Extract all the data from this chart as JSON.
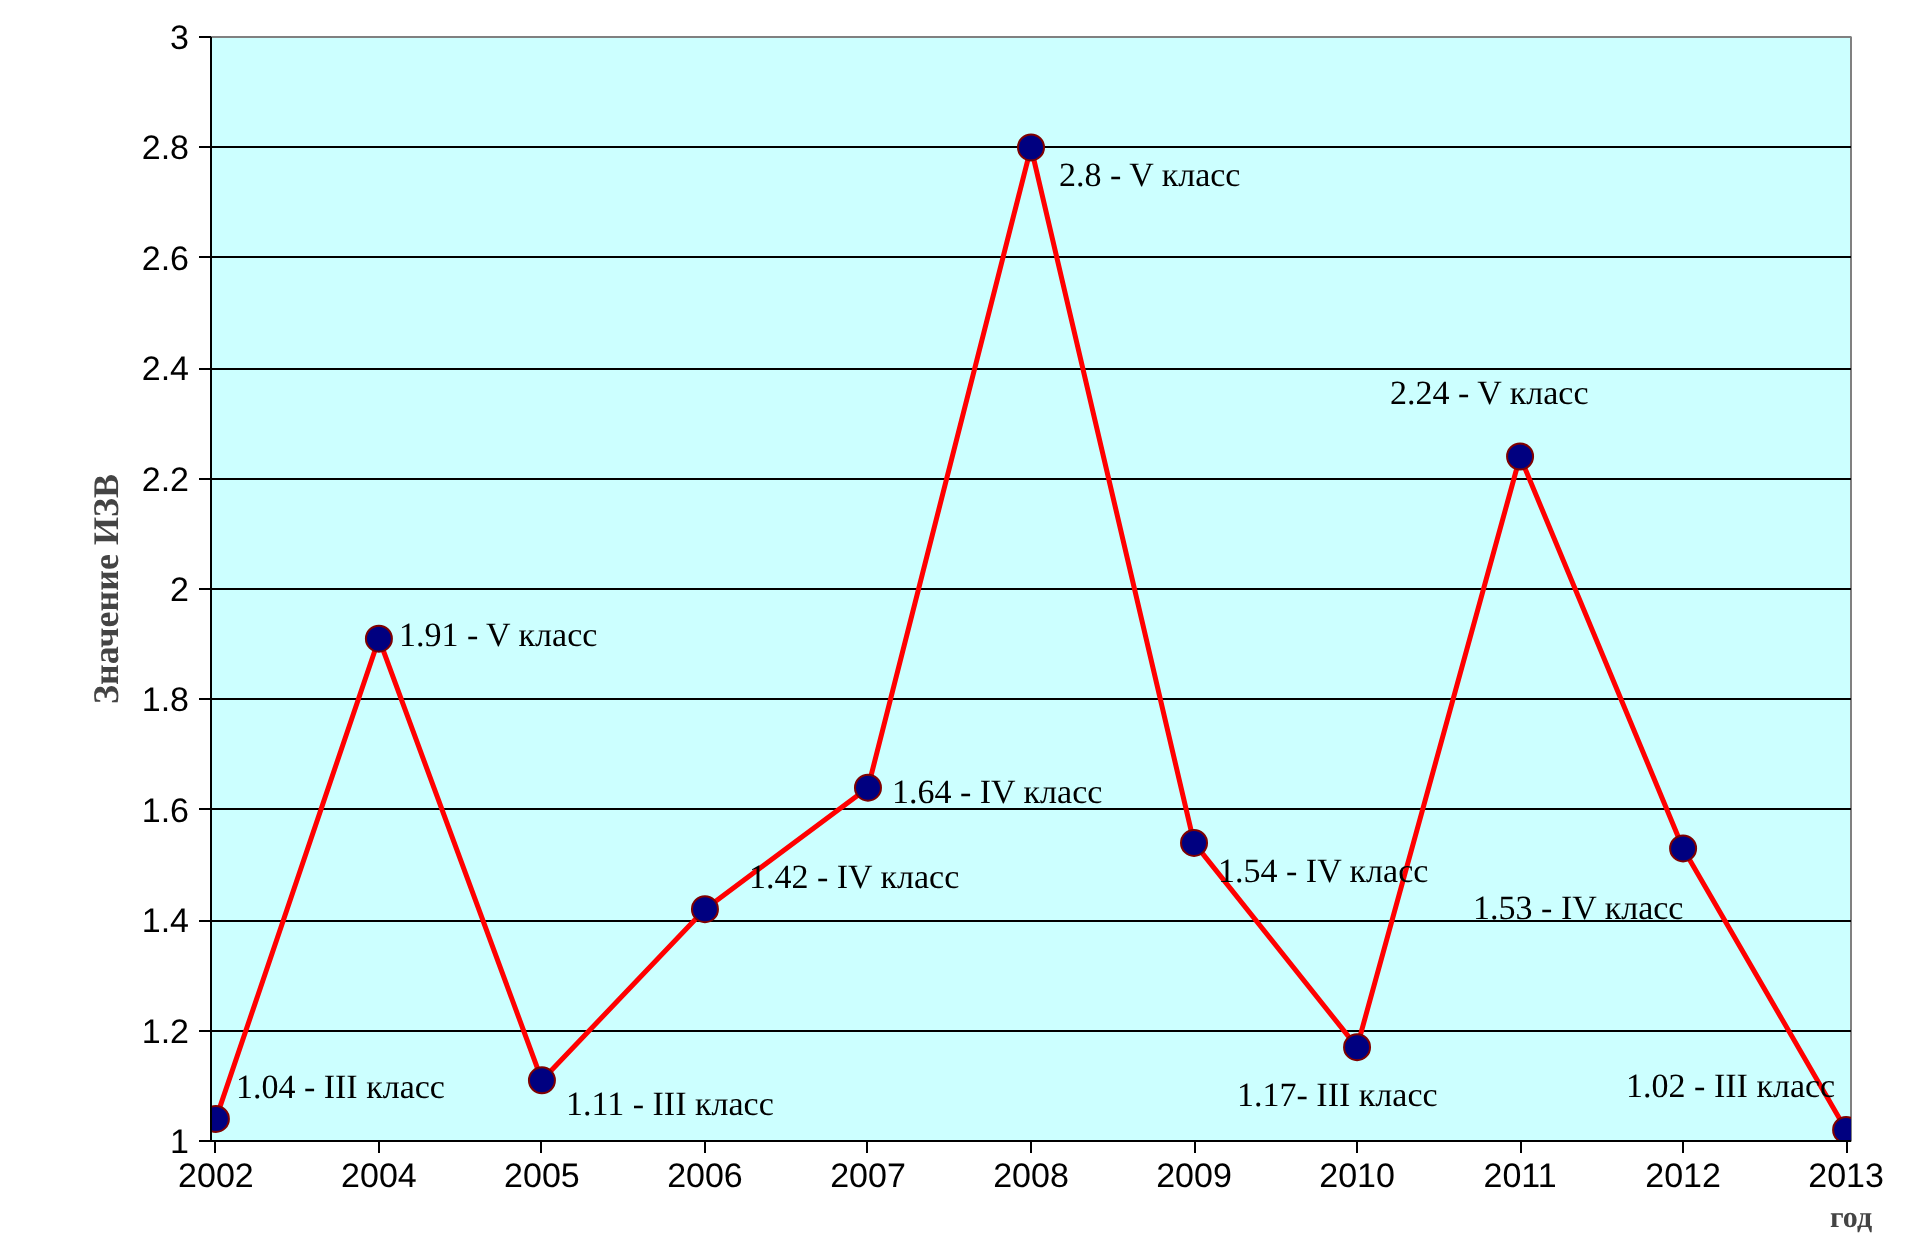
{
  "chart_data": {
    "type": "line",
    "xlabel": "год",
    "ylabel": "Значение ИЗВ",
    "categories": [
      "2002",
      "2004",
      "2005",
      "2006",
      "2007",
      "2008",
      "2009",
      "2010",
      "2011",
      "2012",
      "2013"
    ],
    "series": [
      {
        "color": "#ff0000",
        "values": [
          1.04,
          1.91,
          1.11,
          1.42,
          1.64,
          2.8,
          1.54,
          1.17,
          2.24,
          1.53,
          1.02
        ],
        "value_labels": [
          "1.04 - III класс",
          "1.91 - V класс",
          "1.11 - III класс",
          "1.42 - IV класс",
          "1.64 - IV класс",
          "2.8 - V класс",
          "1.54 - IV класс",
          "1.17- III класс",
          "2.24 - V класс",
          "1.53 - IV класс",
          "1.02 - III класс"
        ]
      }
    ],
    "ylim": [
      1,
      3
    ],
    "yticks": [
      1,
      1.2,
      1.4,
      1.6,
      1.8,
      2,
      2.2,
      2.4,
      2.6,
      2.8,
      3
    ],
    "grid": "y",
    "marker": "circle",
    "line_style": "solid"
  }
}
